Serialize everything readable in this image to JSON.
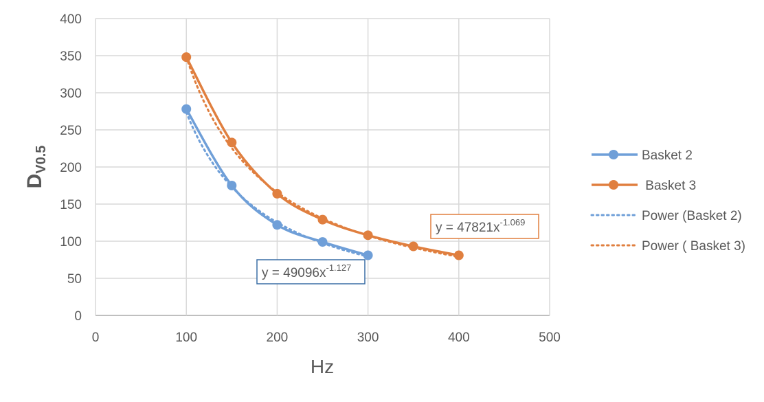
{
  "chart_data": {
    "type": "scatter",
    "title": "",
    "xlabel": "Hz",
    "ylabel": "Dv0.5",
    "ylabel_main": "D",
    "ylabel_sub": "V0.5",
    "xlim": [
      0,
      500
    ],
    "ylim": [
      0,
      400
    ],
    "x_ticks": [
      0,
      100,
      200,
      300,
      400,
      500
    ],
    "y_ticks": [
      0,
      50,
      100,
      150,
      200,
      250,
      300,
      350,
      400
    ],
    "grid": true,
    "legend_position": "right",
    "series": [
      {
        "name": "Basket 2",
        "color": "#6f9fd8",
        "style": "smooth-line-markers",
        "x": [
          100,
          150,
          200,
          250,
          300
        ],
        "values": [
          278,
          175,
          122,
          99,
          81
        ]
      },
      {
        "name": "Basket 3",
        "color": "#e07f3f",
        "style": "smooth-line-markers",
        "x": [
          100,
          150,
          200,
          250,
          300,
          350,
          400
        ],
        "values": [
          348,
          233,
          164,
          129,
          108,
          93,
          81
        ]
      }
    ],
    "trendlines": [
      {
        "name": "Power (Basket 2)",
        "color": "#6f9fd8",
        "style": "dotted",
        "coef": 49096,
        "exponent": -1.127,
        "x_range": [
          100,
          300
        ],
        "equation": "y = 49096x",
        "equation_exp": "-1.127",
        "label_border": "#3a6ea5"
      },
      {
        "name": "Power ( Basket 3)",
        "color": "#e07f3f",
        "style": "dotted",
        "coef": 47821,
        "exponent": -1.069,
        "x_range": [
          100,
          400
        ],
        "equation": "y = 47821x",
        "equation_exp": "-1.069",
        "label_border": "#e07f3f"
      }
    ]
  },
  "legend": {
    "items": [
      {
        "label": "Basket 2",
        "color": "#6f9fd8",
        "kind": "line-marker"
      },
      {
        "label": " Basket 3",
        "color": "#e07f3f",
        "kind": "line-marker"
      },
      {
        "label": "Power (Basket 2)",
        "color": "#6f9fd8",
        "kind": "dotted"
      },
      {
        "label": "Power ( Basket 3)",
        "color": "#e07f3f",
        "kind": "dotted"
      }
    ]
  },
  "equations": {
    "basket2": {
      "base": "y = 49096x",
      "exp": "-1.127"
    },
    "basket3": {
      "base": "y = 47821x",
      "exp": "-1.069"
    }
  },
  "axes": {
    "x_title": "Hz",
    "y_title_main": "D",
    "y_title_sub": "V0.5"
  }
}
